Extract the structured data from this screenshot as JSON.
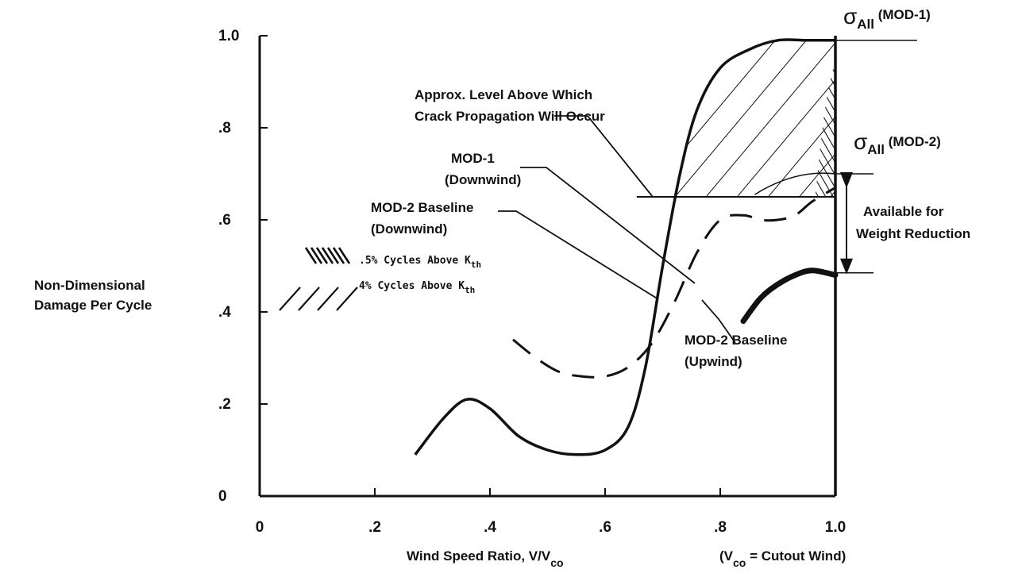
{
  "chart_data": {
    "type": "line",
    "title": "",
    "xlabel": {
      "main": "Wind Speed Ratio, V/V",
      "sub": "co"
    },
    "x_note": {
      "open": "(V",
      "sub": "co",
      "rest": " = Cutout Wind)"
    },
    "ylabel": [
      "Non-Dimensional",
      "Damage Per Cycle"
    ],
    "xlim": [
      0,
      1.0
    ],
    "ylim": [
      0,
      1.0
    ],
    "x_ticks": [
      {
        "value": 0,
        "label": "0"
      },
      {
        "value": 0.2,
        "label": ".2"
      },
      {
        "value": 0.4,
        "label": ".4"
      },
      {
        "value": 0.6,
        "label": ".6"
      },
      {
        "value": 0.8,
        "label": ".8"
      },
      {
        "value": 1.0,
        "label": "1.0"
      }
    ],
    "y_ticks": [
      {
        "value": 0,
        "label": "0"
      },
      {
        "value": 0.2,
        "label": ".2"
      },
      {
        "value": 0.4,
        "label": ".4"
      },
      {
        "value": 0.6,
        "label": ".6"
      },
      {
        "value": 0.8,
        "label": ".8"
      },
      {
        "value": 1.0,
        "label": "1.0"
      }
    ],
    "grid": false,
    "series": [
      {
        "key": "mod1",
        "style": "solid",
        "x": [
          0.27,
          0.32,
          0.36,
          0.4,
          0.45,
          0.5,
          0.55,
          0.6,
          0.64,
          0.67,
          0.7,
          0.73,
          0.76,
          0.8,
          0.85,
          0.9,
          0.95,
          1.0
        ],
        "y": [
          0.09,
          0.17,
          0.21,
          0.19,
          0.13,
          0.1,
          0.09,
          0.1,
          0.15,
          0.28,
          0.5,
          0.7,
          0.84,
          0.93,
          0.97,
          0.99,
          0.99,
          0.99
        ]
      },
      {
        "key": "mod2_downwind",
        "style": "dashed",
        "x": [
          0.44,
          0.48,
          0.52,
          0.56,
          0.6,
          0.64,
          0.68,
          0.72,
          0.76,
          0.8,
          0.84,
          0.87,
          0.9,
          0.93,
          0.96,
          1.0
        ],
        "y": [
          0.34,
          0.3,
          0.27,
          0.26,
          0.26,
          0.28,
          0.33,
          0.42,
          0.53,
          0.6,
          0.61,
          0.6,
          0.6,
          0.61,
          0.64,
          0.67
        ]
      },
      {
        "key": "mod2_upwind",
        "style": "thick",
        "x": [
          0.84,
          0.87,
          0.9,
          0.93,
          0.96,
          1.0
        ],
        "y": [
          0.38,
          0.43,
          0.46,
          0.48,
          0.49,
          0.48
        ]
      }
    ],
    "crack_level": {
      "y": 0.65,
      "x_start": 0.68,
      "x_end": 1.0
    },
    "sigma_mod1": 0.99,
    "sigma_mod2": 0.7,
    "baseline_upwind_level": 0.485,
    "legend": [
      {
        "key": "dense",
        "pattern": "dense-hatch",
        "text": ".5% Cycles Above K",
        "sub": "th"
      },
      {
        "key": "sparse",
        "pattern": "sparse-hatch",
        "text": "4% Cycles Above K",
        "sub": "th"
      }
    ],
    "legend_position": "left"
  },
  "labels": {
    "crack": [
      "Approx. Level Above Which",
      "Crack Propagation Will Occur"
    ],
    "mod1": [
      "MOD-1",
      "(Downwind)"
    ],
    "mod2_down": [
      "MOD-2 Baseline",
      "(Downwind)"
    ],
    "mod2_up": [
      "MOD-2 Baseline",
      "(Upwind)"
    ],
    "weight": [
      "Available for",
      "Weight Reduction"
    ],
    "sigma1": {
      "symbol": "σ",
      "sub": "All",
      "tag": " (MOD-1)"
    },
    "sigma2": {
      "symbol": "σ",
      "sub": "All",
      "tag": " (MOD-2)"
    }
  }
}
